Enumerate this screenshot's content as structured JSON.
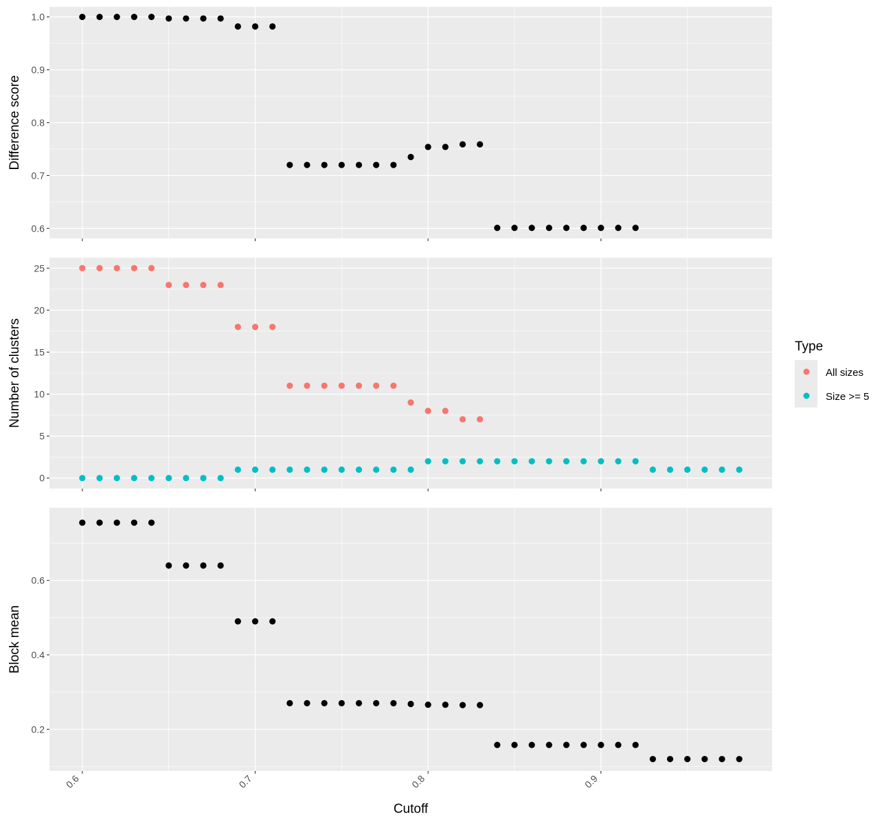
{
  "colors": {
    "panel_background": "#ebebeb",
    "grid_major": "#ffffff",
    "points_default": "#000000",
    "all_sizes": "#f8766d",
    "size_ge_5": "#00bfc4",
    "tick_text": "#4d4d4d"
  },
  "chart_data": [
    {
      "type": "scatter",
      "panel": "top",
      "ylabel": "Difference score",
      "xlim": [
        0.581,
        0.999
      ],
      "ylim": [
        0.581,
        1.019
      ],
      "y_ticks": [
        0.6,
        0.7,
        0.8,
        0.9,
        1.0
      ],
      "y_tick_labels": [
        "0.6",
        "0.7",
        "0.8",
        "0.9",
        "1.0"
      ],
      "x_ticks": [
        0.6,
        0.7,
        0.8,
        0.9
      ],
      "grid": true,
      "series": [
        {
          "color": "#000000",
          "x": [
            0.6,
            0.61,
            0.62,
            0.63,
            0.64,
            0.65,
            0.66,
            0.67,
            0.68,
            0.69,
            0.7,
            0.71,
            0.72,
            0.73,
            0.74,
            0.75,
            0.76,
            0.77,
            0.78,
            0.79,
            0.8,
            0.81,
            0.82,
            0.83,
            0.84,
            0.85,
            0.86,
            0.87,
            0.88,
            0.89,
            0.9,
            0.91,
            0.92
          ],
          "y": [
            1.0,
            1.0,
            1.0,
            1.0,
            1.0,
            0.997,
            0.997,
            0.997,
            0.997,
            0.982,
            0.982,
            0.982,
            0.72,
            0.72,
            0.72,
            0.72,
            0.72,
            0.72,
            0.72,
            0.735,
            0.754,
            0.754,
            0.759,
            0.759,
            0.601,
            0.601,
            0.601,
            0.601,
            0.601,
            0.601,
            0.601,
            0.601,
            0.601
          ]
        }
      ]
    },
    {
      "type": "scatter",
      "panel": "middle",
      "ylabel": "Number of clusters",
      "xlim": [
        0.581,
        0.999
      ],
      "ylim": [
        -1.25,
        26.25
      ],
      "y_ticks": [
        0,
        5,
        10,
        15,
        20,
        25
      ],
      "y_tick_labels": [
        "0",
        "5",
        "10",
        "15",
        "20",
        "25"
      ],
      "x_ticks": [
        0.6,
        0.7,
        0.8,
        0.9
      ],
      "grid": true,
      "series": [
        {
          "name": "All sizes",
          "color": "#f8766d",
          "x": [
            0.6,
            0.61,
            0.62,
            0.63,
            0.64,
            0.65,
            0.66,
            0.67,
            0.68,
            0.69,
            0.7,
            0.71,
            0.72,
            0.73,
            0.74,
            0.75,
            0.76,
            0.77,
            0.78,
            0.79,
            0.8,
            0.81,
            0.82,
            0.83
          ],
          "y": [
            25,
            25,
            25,
            25,
            25,
            23,
            23,
            23,
            23,
            18,
            18,
            18,
            11,
            11,
            11,
            11,
            11,
            11,
            11,
            9,
            8,
            8,
            7,
            7
          ]
        },
        {
          "name": "Size >= 5",
          "color": "#00bfc4",
          "x": [
            0.6,
            0.61,
            0.62,
            0.63,
            0.64,
            0.65,
            0.66,
            0.67,
            0.68,
            0.69,
            0.7,
            0.71,
            0.72,
            0.73,
            0.74,
            0.75,
            0.76,
            0.77,
            0.78,
            0.79,
            0.8,
            0.81,
            0.82,
            0.83,
            0.84,
            0.85,
            0.86,
            0.87,
            0.88,
            0.89,
            0.9,
            0.91,
            0.92,
            0.93,
            0.94,
            0.95,
            0.96,
            0.97,
            0.98
          ],
          "y": [
            0,
            0,
            0,
            0,
            0,
            0,
            0,
            0,
            0,
            1,
            1,
            1,
            1,
            1,
            1,
            1,
            1,
            1,
            1,
            1,
            2,
            2,
            2,
            2,
            2,
            2,
            2,
            2,
            2,
            2,
            2,
            2,
            2,
            1,
            1,
            1,
            1,
            1,
            1
          ]
        }
      ]
    },
    {
      "type": "scatter",
      "panel": "bottom",
      "ylabel": "Block mean",
      "xlabel": "Cutoff",
      "xlim": [
        0.581,
        0.999
      ],
      "ylim": [
        0.088,
        0.795
      ],
      "y_ticks": [
        0.2,
        0.4,
        0.6
      ],
      "y_tick_labels": [
        "0.2",
        "0.4",
        "0.6"
      ],
      "x_ticks": [
        0.6,
        0.7,
        0.8,
        0.9
      ],
      "x_tick_labels": [
        "0.6",
        "0.7",
        "0.8",
        "0.9"
      ],
      "grid": true,
      "series": [
        {
          "color": "#000000",
          "x": [
            0.6,
            0.61,
            0.62,
            0.63,
            0.64,
            0.65,
            0.66,
            0.67,
            0.68,
            0.69,
            0.7,
            0.71,
            0.72,
            0.73,
            0.74,
            0.75,
            0.76,
            0.77,
            0.78,
            0.79,
            0.8,
            0.81,
            0.82,
            0.83,
            0.84,
            0.85,
            0.86,
            0.87,
            0.88,
            0.89,
            0.9,
            0.91,
            0.92,
            0.93,
            0.94,
            0.95,
            0.96,
            0.97,
            0.98
          ],
          "y": [
            0.755,
            0.755,
            0.755,
            0.755,
            0.755,
            0.64,
            0.64,
            0.64,
            0.64,
            0.49,
            0.49,
            0.49,
            0.27,
            0.27,
            0.27,
            0.27,
            0.27,
            0.27,
            0.27,
            0.268,
            0.266,
            0.266,
            0.265,
            0.265,
            0.158,
            0.158,
            0.158,
            0.158,
            0.158,
            0.158,
            0.158,
            0.158,
            0.158,
            0.12,
            0.12,
            0.12,
            0.12,
            0.12,
            0.12
          ]
        }
      ]
    }
  ],
  "legend": {
    "title": "Type",
    "items": [
      {
        "label": "All sizes",
        "color": "#f8766d"
      },
      {
        "label": "Size >= 5",
        "color": "#00bfc4"
      }
    ]
  }
}
